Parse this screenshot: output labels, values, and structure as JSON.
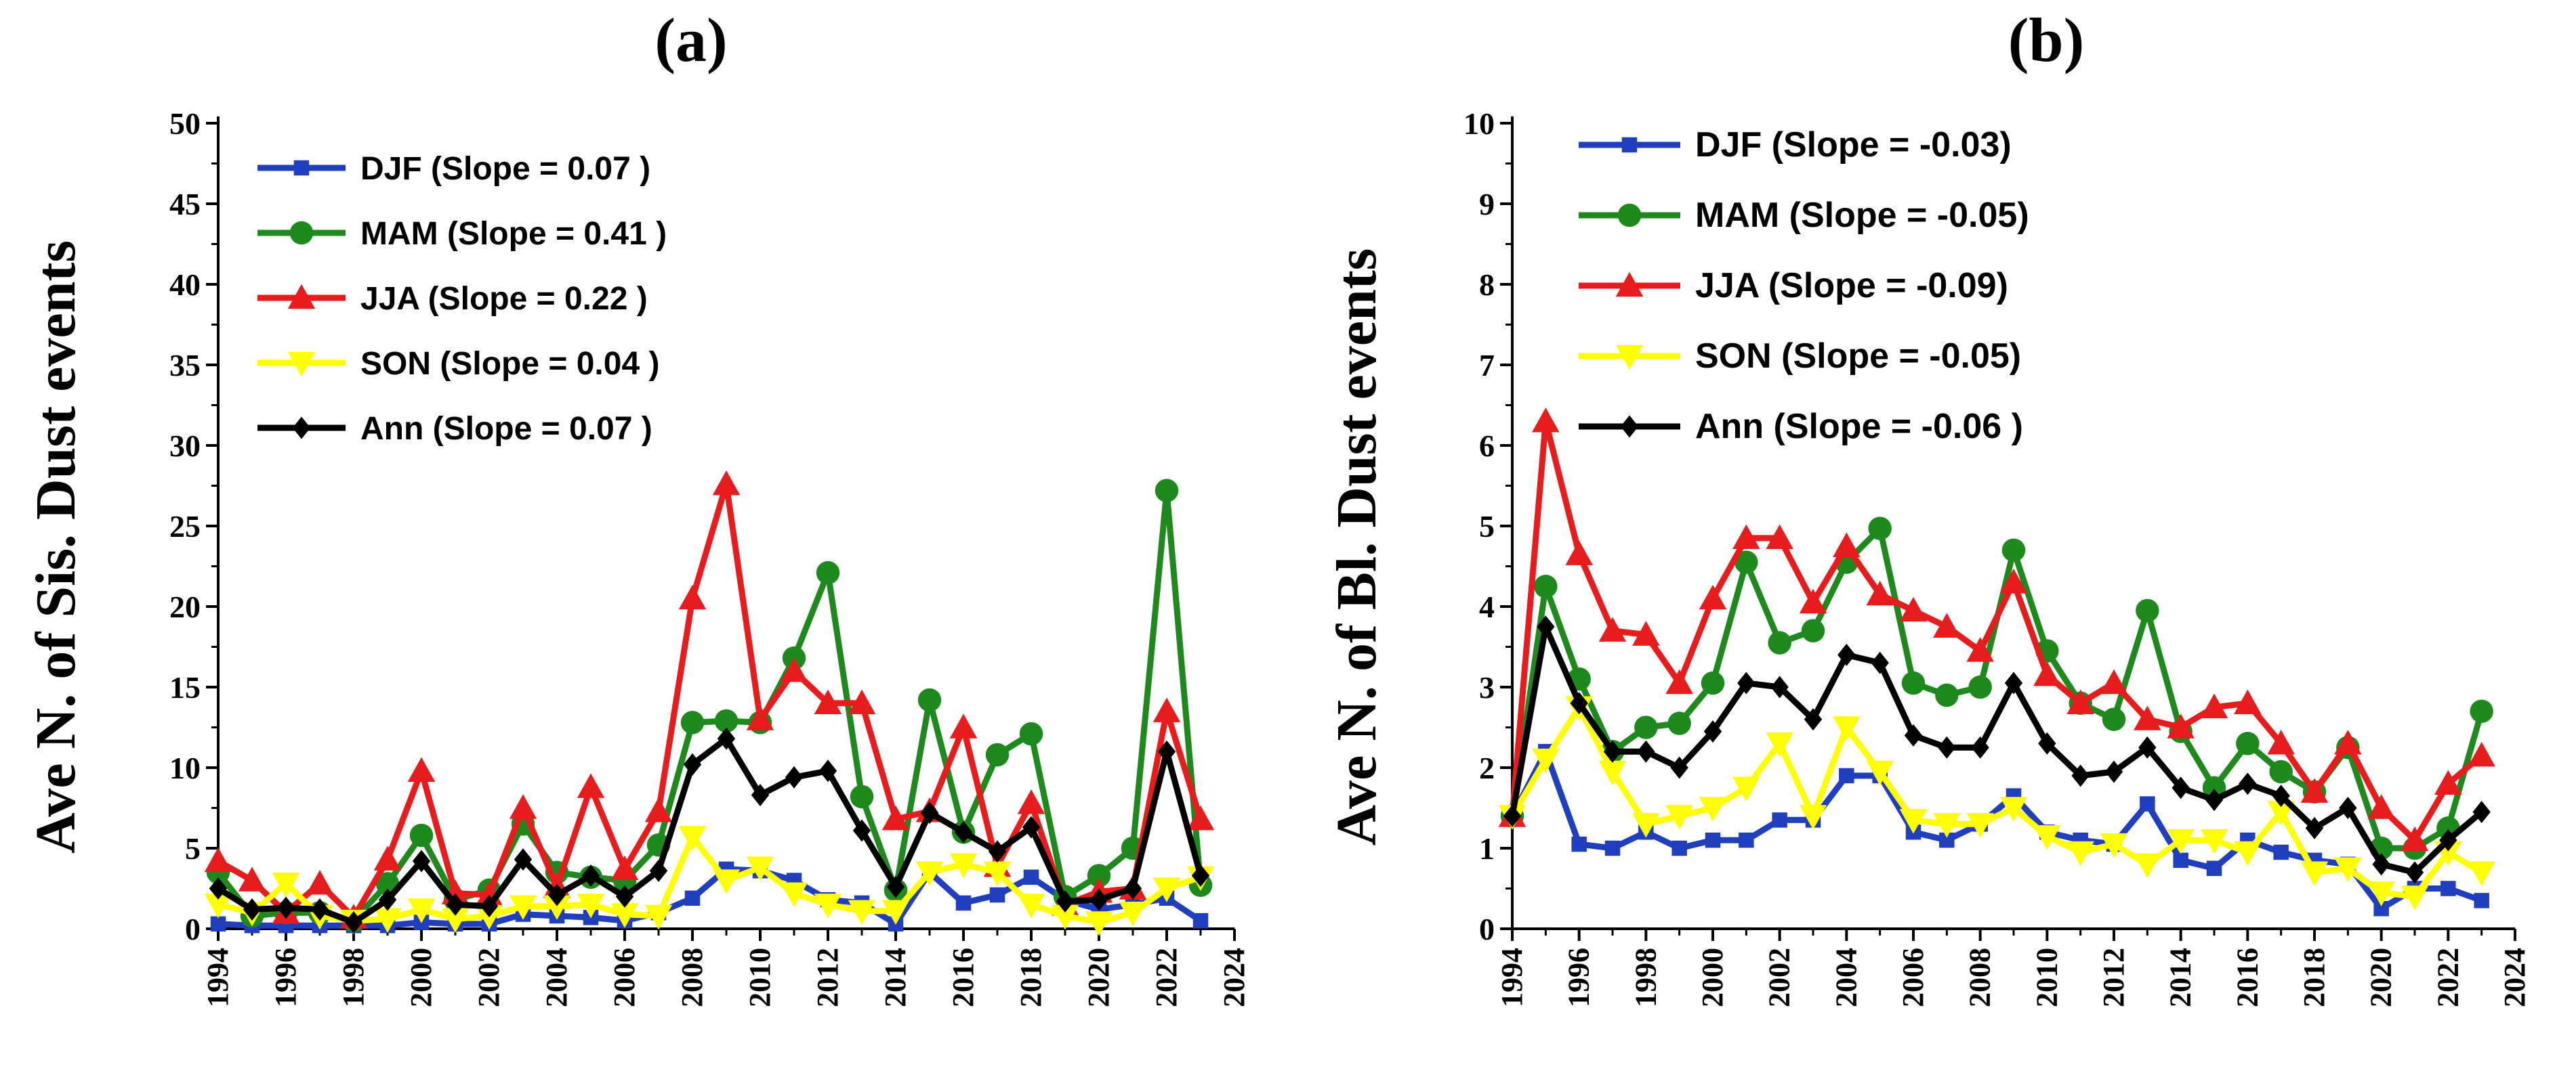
{
  "chart_data": [
    {
      "type": "line",
      "title": "(a)",
      "xlabel": "",
      "ylabel": "Ave N. of Sis. Dust events",
      "xlim": [
        1994,
        2024
      ],
      "ylim": [
        0,
        50
      ],
      "xticks": [
        1994,
        1996,
        1998,
        2000,
        2002,
        2004,
        2006,
        2008,
        2010,
        2012,
        2014,
        2016,
        2018,
        2020,
        2022,
        2024
      ],
      "yticks": [
        0,
        5,
        10,
        15,
        20,
        25,
        30,
        35,
        40,
        45,
        50
      ],
      "x": [
        1994,
        1995,
        1996,
        1997,
        1998,
        1999,
        2000,
        2001,
        2002,
        2003,
        2004,
        2005,
        2006,
        2007,
        2008,
        2009,
        2010,
        2011,
        2012,
        2013,
        2014,
        2015,
        2016,
        2017,
        2018,
        2019,
        2020,
        2021,
        2022,
        2023
      ],
      "legend_position": "top-left",
      "series": [
        {
          "name": "DJF",
          "legend": "DJF (Slope = 0.07 )",
          "color": "#1f3fbf",
          "marker": "square",
          "values": [
            0.3,
            0.2,
            0.2,
            0.2,
            0.2,
            0.2,
            0.4,
            0.3,
            0.3,
            0.9,
            0.8,
            0.7,
            0.5,
            1.0,
            1.9,
            3.7,
            3.6,
            3.0,
            1.8,
            1.6,
            0.3,
            3.5,
            1.6,
            2.1,
            3.2,
            1.8,
            1.2,
            1.5,
            1.9,
            0.5
          ]
        },
        {
          "name": "MAM",
          "legend": "MAM (Slope = 0.41 )",
          "color": "#1e8a1e",
          "marker": "circle",
          "values": [
            3.5,
            0.8,
            1.0,
            1.0,
            0.5,
            2.8,
            5.8,
            1.8,
            2.4,
            6.5,
            3.5,
            3.2,
            3.0,
            5.2,
            12.8,
            12.9,
            12.8,
            16.8,
            22.1,
            8.2,
            2.4,
            14.2,
            6.0,
            10.8,
            12.1,
            2.0,
            3.3,
            5.0,
            27.2,
            2.7
          ]
        },
        {
          "name": "JJA",
          "legend": "JJA  (Slope = 0.22 )",
          "color": "#e81c1c",
          "marker": "triangle-up",
          "values": [
            4.2,
            3.0,
            1.0,
            2.8,
            0.7,
            4.3,
            9.8,
            2.2,
            2.1,
            7.5,
            2.6,
            8.8,
            3.7,
            7.3,
            20.5,
            27.6,
            13.0,
            16.0,
            14.0,
            14.0,
            6.8,
            7.3,
            12.5,
            3.9,
            7.8,
            1.5,
            2.3,
            2.5,
            13.5,
            6.8
          ]
        },
        {
          "name": "SON",
          "legend": " SON (Slope = 0.04 )",
          "color": "#ffff00",
          "marker": "triangle-down",
          "values": [
            1.5,
            1.0,
            2.8,
            0.8,
            0.5,
            0.6,
            1.2,
            0.6,
            0.8,
            1.4,
            1.4,
            1.5,
            0.9,
            0.8,
            5.7,
            3.0,
            3.8,
            2.2,
            1.5,
            1.1,
            1.1,
            3.5,
            4.0,
            3.5,
            1.5,
            0.8,
            0.4,
            1.0,
            2.5,
            3.2
          ]
        },
        {
          "name": "Ann",
          "legend": "Ann (Slope = 0.07 )",
          "color": "#000000",
          "marker": "diamond",
          "values": [
            2.5,
            1.2,
            1.3,
            1.2,
            0.4,
            1.8,
            4.2,
            1.5,
            1.4,
            4.3,
            2.1,
            3.3,
            2.0,
            3.6,
            10.2,
            11.8,
            8.3,
            9.4,
            9.8,
            6.1,
            2.6,
            7.2,
            6.0,
            4.8,
            6.3,
            1.7,
            1.8,
            2.5,
            11.0,
            3.3
          ]
        }
      ]
    },
    {
      "type": "line",
      "title": "(b)",
      "xlabel": "",
      "ylabel": "Ave N. of Bl. Dust events",
      "xlim": [
        1994,
        2024
      ],
      "ylim": [
        0,
        10
      ],
      "xticks": [
        1994,
        1996,
        1998,
        2000,
        2002,
        2004,
        2006,
        2008,
        2010,
        2012,
        2014,
        2016,
        2018,
        2020,
        2022,
        2024
      ],
      "yticks": [
        0,
        1,
        2,
        3,
        4,
        5,
        6,
        7,
        8,
        9,
        10
      ],
      "x": [
        1994,
        1995,
        1996,
        1997,
        1998,
        1999,
        2000,
        2001,
        2002,
        2003,
        2004,
        2005,
        2006,
        2007,
        2008,
        2009,
        2010,
        2011,
        2012,
        2013,
        2014,
        2015,
        2016,
        2017,
        2018,
        2019,
        2020,
        2021,
        2022,
        2023
      ],
      "legend_position": "top-left",
      "series": [
        {
          "name": "DJF",
          "legend": "DJF  (Slope = -0.03)",
          "color": "#1f3fbf",
          "marker": "square",
          "values": [
            1.4,
            2.2,
            1.05,
            1.0,
            1.2,
            1.0,
            1.1,
            1.1,
            1.35,
            1.35,
            1.9,
            1.9,
            1.2,
            1.1,
            1.3,
            1.65,
            1.2,
            1.1,
            1.05,
            1.55,
            0.85,
            0.75,
            1.1,
            0.95,
            0.85,
            0.8,
            0.25,
            0.5,
            0.5,
            0.35
          ]
        },
        {
          "name": "MAM",
          "legend": "MAM (Slope = -0.05)",
          "color": "#1e8a1e",
          "marker": "circle",
          "values": [
            1.4,
            4.25,
            3.1,
            2.2,
            2.5,
            2.55,
            3.05,
            4.55,
            3.55,
            3.7,
            4.55,
            4.97,
            3.05,
            2.9,
            3.0,
            4.7,
            3.45,
            2.8,
            2.6,
            3.95,
            2.45,
            1.75,
            2.3,
            1.95,
            1.7,
            2.25,
            1.0,
            1.0,
            1.25,
            2.7
          ]
        },
        {
          "name": "JJA",
          "legend": "JJA (Slope =  -0.09)",
          "color": "#e81c1c",
          "marker": "triangle-up",
          "values": [
            1.4,
            6.3,
            4.65,
            3.7,
            3.65,
            3.05,
            4.1,
            4.85,
            4.85,
            4.05,
            4.75,
            4.15,
            3.95,
            3.75,
            3.45,
            4.3,
            3.15,
            2.8,
            3.05,
            2.6,
            2.5,
            2.75,
            2.8,
            2.3,
            1.7,
            2.3,
            1.5,
            1.1,
            1.8,
            2.15
          ]
        },
        {
          "name": "SON",
          "legend": " SON (Slope = -0.05)",
          "color": "#ffff00",
          "marker": "triangle-down",
          "values": [
            1.4,
            2.1,
            2.75,
            1.95,
            1.3,
            1.4,
            1.5,
            1.75,
            2.3,
            1.4,
            2.5,
            1.95,
            1.35,
            1.3,
            1.3,
            1.5,
            1.15,
            0.95,
            1.05,
            0.8,
            1.1,
            1.1,
            0.95,
            1.45,
            0.7,
            0.75,
            0.45,
            0.4,
            0.95,
            0.7
          ]
        },
        {
          "name": "Ann",
          "legend": "Ann (Slope = -0.06 )",
          "color": "#000000",
          "marker": "diamond",
          "values": [
            1.4,
            3.75,
            2.8,
            2.2,
            2.2,
            2.0,
            2.45,
            3.05,
            3.0,
            2.6,
            3.4,
            3.3,
            2.4,
            2.25,
            2.25,
            3.05,
            2.3,
            1.9,
            1.95,
            2.25,
            1.75,
            1.6,
            1.8,
            1.65,
            1.25,
            1.5,
            0.8,
            0.7,
            1.1,
            1.45
          ]
        }
      ]
    }
  ]
}
